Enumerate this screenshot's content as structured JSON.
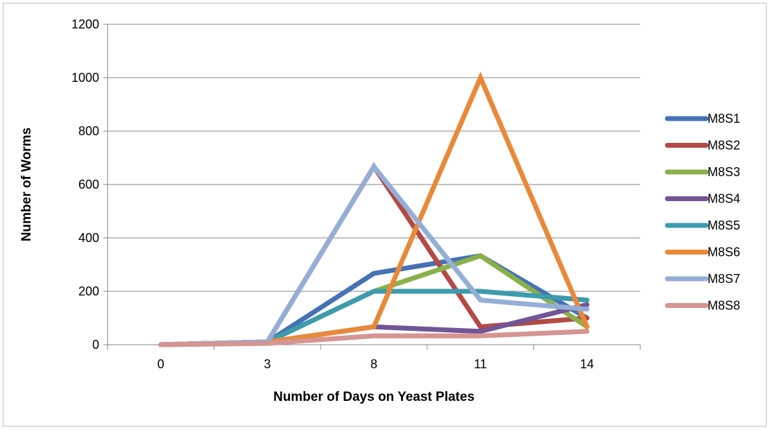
{
  "chart_data": {
    "type": "line",
    "title": "",
    "xlabel": "Number of Days on Yeast Plates",
    "ylabel": "Number of Worms",
    "categories": [
      "0",
      "3",
      "8",
      "11",
      "14"
    ],
    "ylim": [
      0,
      1200
    ],
    "yticks": [
      "0",
      "200",
      "400",
      "600",
      "800",
      "1000",
      "1200"
    ],
    "grid": true,
    "legend_position": "right",
    "series": [
      {
        "name": "M8S1",
        "color": "#4672b3",
        "values": [
          0,
          10,
          267,
          333,
          100
        ]
      },
      {
        "name": "M8S2",
        "color": "#b34a46",
        "values": [
          0,
          10,
          667,
          67,
          100
        ]
      },
      {
        "name": "M8S3",
        "color": "#8ab04b",
        "values": [
          0,
          10,
          200,
          333,
          67
        ]
      },
      {
        "name": "M8S4",
        "color": "#725596",
        "values": [
          0,
          10,
          67,
          50,
          150
        ]
      },
      {
        "name": "M8S5",
        "color": "#3d9bad",
        "values": [
          0,
          10,
          200,
          200,
          167
        ]
      },
      {
        "name": "M8S6",
        "color": "#e8893a",
        "values": [
          0,
          10,
          67,
          1000,
          67
        ]
      },
      {
        "name": "M8S7",
        "color": "#95aed7",
        "values": [
          0,
          10,
          667,
          167,
          133
        ]
      },
      {
        "name": "M8S8",
        "color": "#d59592",
        "values": [
          0,
          5,
          33,
          33,
          50
        ]
      }
    ]
  }
}
